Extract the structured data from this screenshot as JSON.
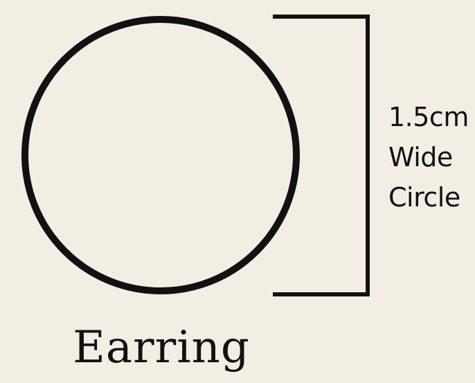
{
  "diagram": {
    "measurement": {
      "lines": [
        "1.5cm",
        "Wide",
        "Circle"
      ]
    },
    "caption": "Earring",
    "colors": {
      "background": "#f2eee3",
      "stroke": "#111111"
    }
  }
}
